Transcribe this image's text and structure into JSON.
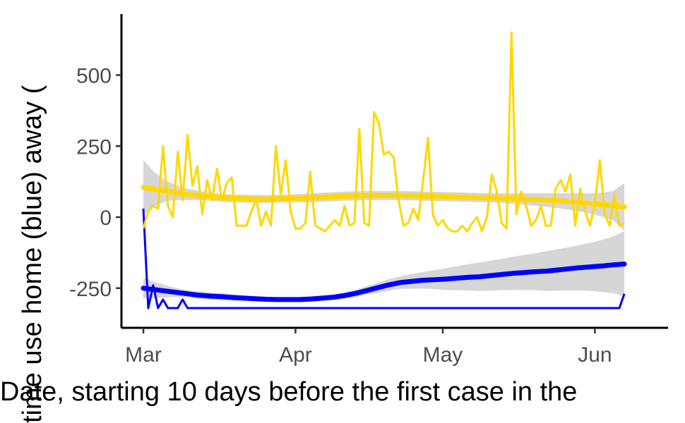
{
  "chart_data": {
    "type": "line",
    "xlabel": "Date, starting 10 days before the first case in the",
    "ylabel": "time use home (blue) away (",
    "x_ticks": [
      "Mar",
      "Apr",
      "May",
      "Jun"
    ],
    "y_ticks": [
      "500",
      "250",
      "0",
      "-250"
    ],
    "x_range": [
      "2020-03-01",
      "2020-06-15"
    ],
    "ylim": [
      -390,
      710
    ],
    "grid": false,
    "legend": "none",
    "series": [
      {
        "color": "#0000ff",
        "style": "raw",
        "values": [
          30,
          -320,
          -240,
          -320,
          -290,
          -320,
          -320,
          -320,
          -290,
          -320,
          -320,
          -320,
          -320,
          -320,
          -320,
          -320,
          -320,
          -320,
          -320,
          -320,
          -320,
          -320,
          -320,
          -320,
          -320,
          -320,
          -320,
          -320,
          -320,
          -320,
          -320,
          -320,
          -320,
          -320,
          -320,
          -320,
          -320,
          -320,
          -320,
          -320,
          -320,
          -320,
          -320,
          -320,
          -320,
          -320,
          -320,
          -320,
          -320,
          -320,
          -320,
          -320,
          -320,
          -320,
          -320,
          -320,
          -320,
          -320,
          -320,
          -320,
          -320,
          -320,
          -320,
          -320,
          -320,
          -320,
          -320,
          -320,
          -320,
          -320,
          -320,
          -320,
          -320,
          -320,
          -320,
          -320,
          -320,
          -320,
          -320,
          -320,
          -320,
          -320,
          -320,
          -320,
          -320,
          -320,
          -320,
          -320,
          -320,
          -320,
          -320,
          -320,
          -320,
          -320,
          -320,
          -320,
          -320,
          -320,
          -270
        ],
        "dates": [
          "2020-03-01",
          "2020-03-02",
          "2020-03-03",
          "2020-03-04",
          "2020-03-05",
          "2020-03-06",
          "2020-03-07",
          "2020-03-08",
          "2020-03-09",
          "2020-03-10",
          "2020-03-11",
          "2020-03-12",
          "2020-03-13",
          "2020-03-14",
          "2020-03-15",
          "2020-03-16",
          "2020-03-17",
          "2020-03-18",
          "2020-03-19",
          "2020-03-20",
          "2020-03-21",
          "2020-03-22",
          "2020-03-23",
          "2020-03-24",
          "2020-03-25",
          "2020-03-26",
          "2020-03-27",
          "2020-03-28",
          "2020-03-29",
          "2020-03-30",
          "2020-03-31",
          "2020-04-01",
          "2020-04-02",
          "2020-04-03",
          "2020-04-04",
          "2020-04-05",
          "2020-04-06",
          "2020-04-07",
          "2020-04-08",
          "2020-04-09",
          "2020-04-10",
          "2020-04-11",
          "2020-04-12",
          "2020-04-13",
          "2020-04-14",
          "2020-04-15",
          "2020-04-16",
          "2020-04-17",
          "2020-04-18",
          "2020-04-19",
          "2020-04-20",
          "2020-04-21",
          "2020-04-22",
          "2020-04-23",
          "2020-04-24",
          "2020-04-25",
          "2020-04-26",
          "2020-04-27",
          "2020-04-28",
          "2020-04-29",
          "2020-04-30",
          "2020-05-01",
          "2020-05-02",
          "2020-05-03",
          "2020-05-04",
          "2020-05-05",
          "2020-05-06",
          "2020-05-07",
          "2020-05-08",
          "2020-05-09",
          "2020-05-10",
          "2020-05-11",
          "2020-05-12",
          "2020-05-13",
          "2020-05-14",
          "2020-05-15",
          "2020-05-16",
          "2020-05-17",
          "2020-05-18",
          "2020-05-19",
          "2020-05-20",
          "2020-05-21",
          "2020-05-22",
          "2020-05-23",
          "2020-05-24",
          "2020-05-25",
          "2020-05-26",
          "2020-05-27",
          "2020-05-28",
          "2020-05-29",
          "2020-05-30",
          "2020-05-31",
          "2020-06-01",
          "2020-06-02",
          "2020-06-03",
          "2020-06-04",
          "2020-06-05",
          "2020-06-06",
          "2020-06-07"
        ]
      },
      {
        "color": "#ffd700",
        "style": "raw",
        "values": [
          -40,
          20,
          40,
          30,
          250,
          40,
          0,
          230,
          60,
          290,
          110,
          180,
          10,
          130,
          60,
          170,
          60,
          120,
          140,
          -30,
          -30,
          -30,
          20,
          60,
          -30,
          20,
          -30,
          250,
          80,
          200,
          20,
          -40,
          -40,
          -20,
          160,
          -30,
          -40,
          -50,
          -30,
          -10,
          -30,
          40,
          -30,
          -20,
          310,
          -20,
          -30,
          370,
          330,
          220,
          230,
          210,
          60,
          -30,
          -20,
          30,
          -10,
          130,
          280,
          10,
          -30,
          -10,
          -40,
          -50,
          -50,
          -30,
          -50,
          -20,
          0,
          -50,
          0,
          150,
          90,
          -20,
          -40,
          650,
          10,
          90,
          40,
          -30,
          -10,
          40,
          -30,
          -30,
          100,
          130,
          90,
          150,
          -30,
          100,
          20,
          -30,
          50,
          200,
          10,
          -30,
          80,
          -30,
          -20
        ],
        "dates_ref": 0
      },
      {
        "color": "#0000ff",
        "style": "smooth",
        "values": [
          -250,
          -255,
          -260,
          -265,
          -270,
          -275,
          -278,
          -280,
          -283,
          -285,
          -287,
          -289,
          -290,
          -290,
          -290,
          -288,
          -285,
          -282,
          -276,
          -268,
          -258,
          -248,
          -238,
          -230,
          -226,
          -222,
          -220,
          -218,
          -215,
          -212,
          -210,
          -206,
          -202,
          -198,
          -195,
          -192,
          -190,
          -186,
          -182,
          -178,
          -175,
          -172,
          -168,
          -165
        ],
        "band_upper": [
          -215,
          -228,
          -240,
          -250,
          -258,
          -262,
          -265,
          -268,
          -272,
          -276,
          -279,
          -282,
          -283,
          -282,
          -281,
          -279,
          -276,
          -272,
          -265,
          -255,
          -243,
          -230,
          -218,
          -208,
          -200,
          -193,
          -187,
          -180,
          -173,
          -166,
          -160,
          -153,
          -147,
          -140,
          -133,
          -127,
          -120,
          -113,
          -106,
          -98,
          -90,
          -80,
          -68,
          -50
        ],
        "band_lower": [
          -285,
          -285,
          -283,
          -280,
          -282,
          -288,
          -291,
          -292,
          -294,
          -294,
          -295,
          -296,
          -297,
          -298,
          -299,
          -297,
          -294,
          -292,
          -287,
          -281,
          -273,
          -266,
          -258,
          -252,
          -252,
          -251,
          -253,
          -256,
          -257,
          -258,
          -260,
          -259,
          -257,
          -256,
          -257,
          -257,
          -260,
          -259,
          -258,
          -258,
          -260,
          -264,
          -268,
          -280
        ]
      },
      {
        "color": "#ffd700",
        "style": "smooth",
        "values": [
          105,
          98,
          92,
          86,
          80,
          76,
          72,
          68,
          66,
          65,
          64,
          64,
          65,
          66,
          67,
          68,
          70,
          72,
          74,
          75,
          76,
          76,
          76,
          76,
          75,
          74,
          73,
          72,
          71,
          70,
          69,
          68,
          67,
          66,
          64,
          62,
          60,
          58,
          55,
          52,
          48,
          44,
          40,
          36
        ],
        "band_upper": [
          200,
          158,
          128,
          112,
          100,
          92,
          86,
          82,
          80,
          79,
          78,
          78,
          79,
          80,
          82,
          84,
          86,
          88,
          90,
          91,
          92,
          92,
          92,
          92,
          91,
          90,
          89,
          88,
          87,
          86,
          85,
          84,
          84,
          84,
          84,
          84,
          84,
          84,
          84,
          84,
          84,
          86,
          92,
          120
        ],
        "band_lower": [
          10,
          38,
          56,
          60,
          60,
          60,
          58,
          54,
          52,
          51,
          50,
          50,
          51,
          52,
          52,
          52,
          54,
          56,
          58,
          59,
          60,
          60,
          60,
          60,
          59,
          58,
          57,
          56,
          55,
          54,
          53,
          52,
          50,
          48,
          44,
          40,
          36,
          32,
          26,
          20,
          12,
          2,
          -12,
          -48
        ]
      }
    ]
  }
}
